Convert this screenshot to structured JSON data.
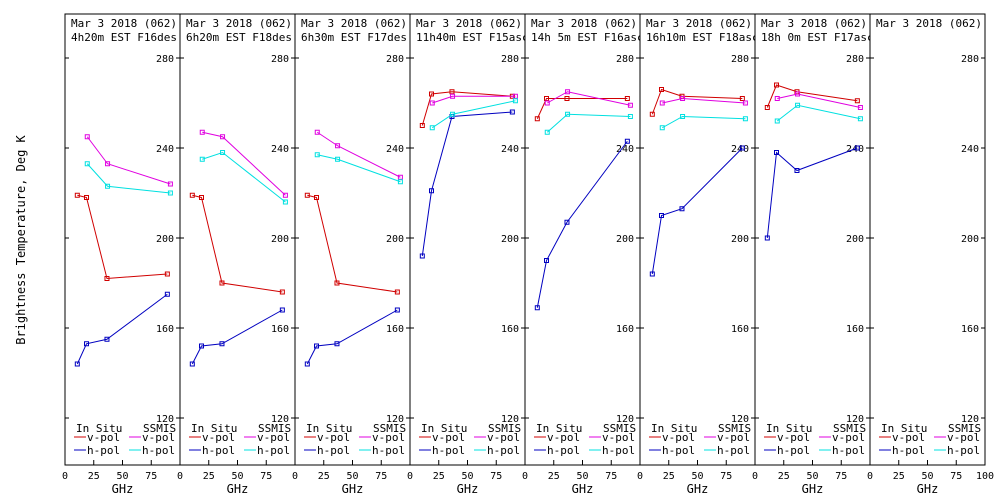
{
  "chart_data": {
    "type": "line",
    "ylabel": "Brightness Temperature, Deg K",
    "xlabel": "GHz",
    "xlim": [
      0,
      100
    ],
    "ylim": [
      115,
      290
    ],
    "xticks": [
      0,
      25,
      50,
      75,
      100
    ],
    "yticks": [
      120,
      160,
      200,
      240,
      280
    ],
    "colors": {
      "insitu_v": "#d00000",
      "insitu_h": "#0000c0",
      "ssmis_v": "#e000e0",
      "ssmis_h": "#00e0e0"
    },
    "legend": {
      "insitu_header": "In Situ",
      "ssmis_header": "SSMIS",
      "vpol": "v-pol",
      "hpol": "h-pol"
    },
    "panels": [
      {
        "title1": "Mar 3 2018 (062)",
        "title2": "4h20m EST F16des",
        "insitu_v": {
          "x": [
            10.7,
            18.7,
            36.5,
            89
          ],
          "y": [
            219,
            218,
            182,
            184
          ]
        },
        "insitu_h": {
          "x": [
            10.7,
            18.7,
            36.5,
            89
          ],
          "y": [
            144,
            153,
            155,
            175
          ]
        },
        "ssmis_v": {
          "x": [
            19.35,
            37,
            91.655
          ],
          "y": [
            245,
            233,
            224
          ]
        },
        "ssmis_h": {
          "x": [
            19.35,
            37,
            91.655
          ],
          "y": [
            233,
            223,
            220
          ]
        }
      },
      {
        "title1": "Mar 3 2018 (062)",
        "title2": "6h20m EST F18des",
        "insitu_v": {
          "x": [
            10.7,
            18.7,
            36.5,
            89
          ],
          "y": [
            219,
            218,
            180,
            176
          ]
        },
        "insitu_h": {
          "x": [
            10.7,
            18.7,
            36.5,
            89
          ],
          "y": [
            144,
            152,
            153,
            168
          ]
        },
        "ssmis_v": {
          "x": [
            19.35,
            37,
            91.655
          ],
          "y": [
            247,
            245,
            219
          ]
        },
        "ssmis_h": {
          "x": [
            19.35,
            37,
            91.655
          ],
          "y": [
            235,
            238,
            216
          ]
        }
      },
      {
        "title1": "Mar 3 2018 (062)",
        "title2": "6h30m EST F17des",
        "insitu_v": {
          "x": [
            10.7,
            18.7,
            36.5,
            89
          ],
          "y": [
            219,
            218,
            180,
            176
          ]
        },
        "insitu_h": {
          "x": [
            10.7,
            18.7,
            36.5,
            89
          ],
          "y": [
            144,
            152,
            153,
            168
          ]
        },
        "ssmis_v": {
          "x": [
            19.35,
            37,
            91.655
          ],
          "y": [
            247,
            241,
            227
          ]
        },
        "ssmis_h": {
          "x": [
            19.35,
            37,
            91.655
          ],
          "y": [
            237,
            235,
            225
          ]
        }
      },
      {
        "title1": "Mar 3 2018 (062)",
        "title2": "11h40m EST F15asc",
        "insitu_v": {
          "x": [
            10.7,
            18.7,
            36.5,
            89
          ],
          "y": [
            250,
            264,
            265,
            263
          ]
        },
        "insitu_h": {
          "x": [
            10.7,
            18.7,
            36.5,
            89
          ],
          "y": [
            192,
            221,
            254,
            256
          ]
        },
        "ssmis_v": {
          "x": [
            19.35,
            37,
            91.655
          ],
          "y": [
            260,
            263,
            263
          ]
        },
        "ssmis_h": {
          "x": [
            19.35,
            37,
            91.655
          ],
          "y": [
            249,
            255,
            261
          ]
        }
      },
      {
        "title1": "Mar 3 2018 (062)",
        "title2": "14h 5m EST F16asc",
        "insitu_v": {
          "x": [
            10.7,
            18.7,
            36.5,
            89
          ],
          "y": [
            253,
            262,
            262,
            262
          ]
        },
        "insitu_h": {
          "x": [
            10.7,
            18.7,
            36.5,
            89
          ],
          "y": [
            169,
            190,
            207,
            243
          ]
        },
        "ssmis_v": {
          "x": [
            19.35,
            37,
            91.655
          ],
          "y": [
            260,
            265,
            259
          ]
        },
        "ssmis_h": {
          "x": [
            19.35,
            37,
            91.655
          ],
          "y": [
            247,
            255,
            254
          ]
        }
      },
      {
        "title1": "Mar 3 2018 (062)",
        "title2": "16h10m EST F18asc",
        "insitu_v": {
          "x": [
            10.7,
            18.7,
            36.5,
            89
          ],
          "y": [
            255,
            266,
            263,
            262
          ]
        },
        "insitu_h": {
          "x": [
            10.7,
            18.7,
            36.5,
            89
          ],
          "y": [
            184,
            210,
            213,
            240
          ]
        },
        "ssmis_v": {
          "x": [
            19.35,
            37,
            91.655
          ],
          "y": [
            260,
            262,
            260
          ]
        },
        "ssmis_h": {
          "x": [
            19.35,
            37,
            91.655
          ],
          "y": [
            249,
            254,
            253
          ]
        }
      },
      {
        "title1": "Mar 3 2018 (062)",
        "title2": "18h 0m EST F17asc",
        "insitu_v": {
          "x": [
            10.7,
            18.7,
            36.5,
            89
          ],
          "y": [
            258,
            268,
            265,
            261
          ]
        },
        "insitu_h": {
          "x": [
            10.7,
            18.7,
            36.5,
            89
          ],
          "y": [
            200,
            238,
            230,
            240
          ]
        },
        "ssmis_v": {
          "x": [
            19.35,
            37,
            91.655
          ],
          "y": [
            262,
            264,
            258
          ]
        },
        "ssmis_h": {
          "x": [
            19.35,
            37,
            91.655
          ],
          "y": [
            252,
            259,
            253
          ]
        }
      },
      {
        "title1": "Mar 3 2018 (062)",
        "title2": ""
      }
    ]
  }
}
